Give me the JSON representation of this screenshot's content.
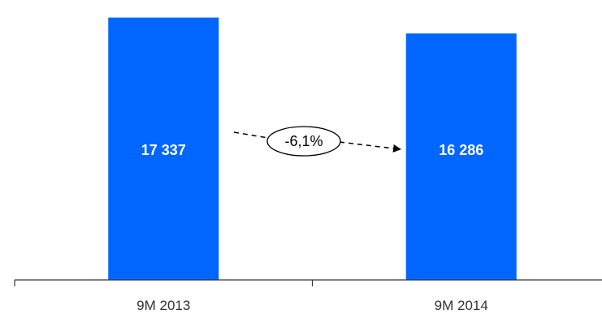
{
  "chart_data": {
    "type": "bar",
    "categories": [
      "9M 2013",
      "9M 2014"
    ],
    "values": [
      17337,
      16286
    ],
    "value_labels": [
      "17 337",
      "16 286"
    ],
    "annotation": {
      "text": "-6,1%",
      "from": "9M 2013",
      "to": "9M 2014"
    },
    "bar_color": "#0066ff",
    "ylim": [
      0,
      17800
    ],
    "grid": false,
    "legend": "none"
  }
}
